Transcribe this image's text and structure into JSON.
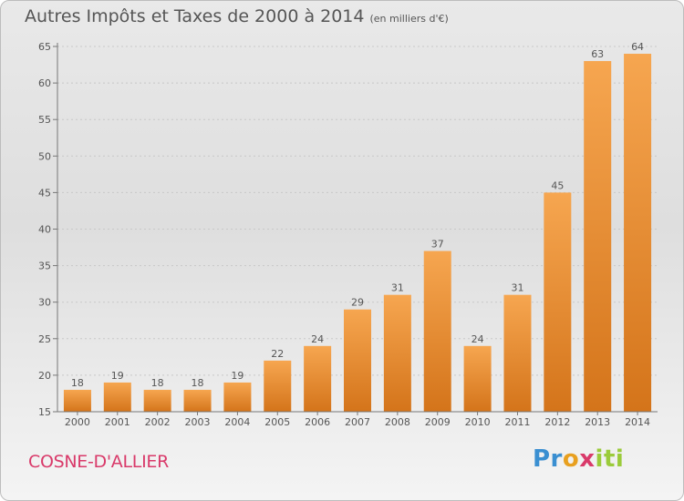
{
  "chart_data": {
    "type": "bar",
    "title": "Autres Impôts et Taxes de 2000 à 2014",
    "subtitle": "(en milliers d'€)",
    "categories": [
      "2000",
      "2001",
      "2002",
      "2003",
      "2004",
      "2005",
      "2006",
      "2007",
      "2008",
      "2009",
      "2010",
      "2011",
      "2012",
      "2013",
      "2014"
    ],
    "values": [
      18,
      19,
      18,
      18,
      19,
      22,
      24,
      29,
      31,
      37,
      24,
      31,
      45,
      63,
      64
    ],
    "ylim": [
      15,
      65
    ],
    "yticks": [
      15,
      20,
      25,
      30,
      35,
      40,
      45,
      50,
      55,
      60,
      65
    ],
    "grid": "horizontal dotted",
    "bar_color_top": "#f6a650",
    "bar_color_bottom": "#d4741a"
  },
  "footer": {
    "city": "COSNE-D'ALLIER",
    "logo": {
      "p1": "Pr",
      "p2": "o",
      "p3": "x",
      "p4": "iti"
    }
  }
}
